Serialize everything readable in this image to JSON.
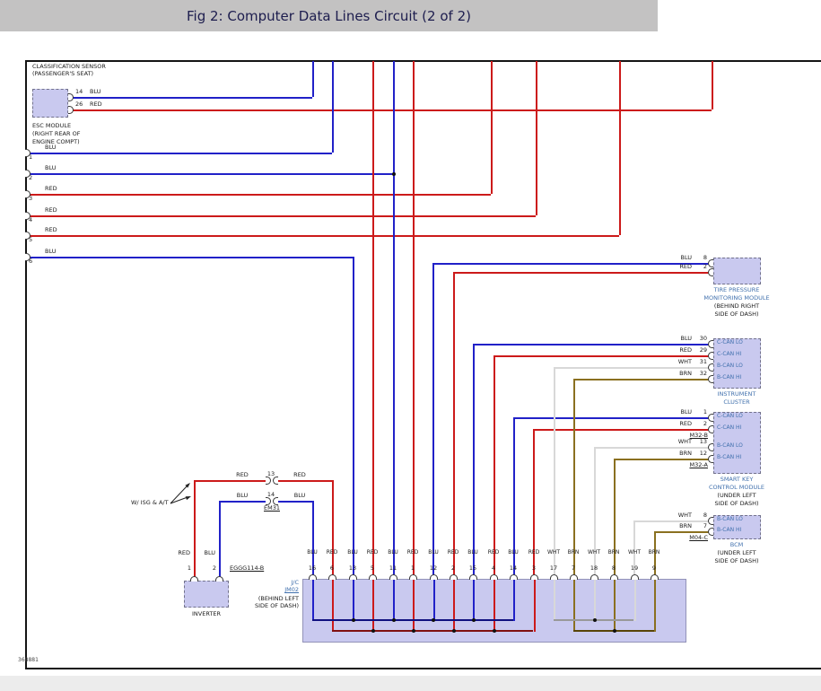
{
  "header": {
    "title": "Fig 2: Computer Data Lines Circuit (2 of 2)"
  },
  "figure_number": "368881",
  "palette": {
    "blu": "#2121c8",
    "red": "#cc1a1a",
    "wht": "#d8d8d8",
    "brn": "#8a7020",
    "bus_blu": "#101080",
    "bus_red": "#801010",
    "bus_wht": "#999999",
    "bus_brn": "#584408",
    "module_name_color": "#4070ad",
    "box_fill": "#c9c9ef"
  },
  "modules": {
    "classification_sensor": {
      "name_lines": [
        "CLASSIFICATION SENSOR",
        "(PASSENGER'S SEAT)"
      ],
      "pins": [
        {
          "num": "14",
          "wire": "BLU"
        },
        {
          "num": "26",
          "wire": "RED"
        }
      ]
    },
    "esc_module": {
      "name_lines": [
        "ESC MODULE",
        "(RIGHT REAR OF",
        "ENGINE COMPT)"
      ],
      "pins": [
        {
          "num": "1",
          "wire": "BLU"
        },
        {
          "num": "2",
          "wire": "BLU"
        },
        {
          "num": "3",
          "wire": "RED"
        },
        {
          "num": "4",
          "wire": "RED"
        },
        {
          "num": "5",
          "wire": "RED"
        },
        {
          "num": "6",
          "wire": "BLU"
        }
      ]
    },
    "tpms": {
      "name_lines": [
        "TIRE PRESSURE",
        "MONITORING MODULE"
      ],
      "location_lines": [
        "(BEHIND RIGHT",
        "SIDE OF DASH)"
      ],
      "pins": [
        {
          "num": "8",
          "wire": "BLU"
        },
        {
          "num": "2",
          "wire": "RED"
        }
      ]
    },
    "instrument_cluster": {
      "name_lines": [
        "INSTRUMENT",
        "CLUSTER"
      ],
      "location_lines": [],
      "pins": [
        {
          "num": "30",
          "wire": "BLU",
          "can": "C-CAN LO"
        },
        {
          "num": "29",
          "wire": "RED",
          "can": "C-CAN HI"
        },
        {
          "num": "31",
          "wire": "WHT",
          "can": "B-CAN LO"
        },
        {
          "num": "32",
          "wire": "BRN",
          "can": "B-CAN HI"
        }
      ]
    },
    "smart_key": {
      "name_lines": [
        "SMART KEY",
        "CONTROL MODULE"
      ],
      "location_lines": [
        "(UNDER LEFT",
        "SIDE OF DASH)"
      ],
      "pins": [
        {
          "num": "1",
          "wire": "BLU",
          "can": "C-CAN LO"
        },
        {
          "num": "2",
          "wire": "RED",
          "can": "C-CAN HI",
          "connector": "M32-B"
        },
        {
          "num": "13",
          "wire": "WHT",
          "can": "B-CAN LO"
        },
        {
          "num": "12",
          "wire": "BRN",
          "can": "B-CAN HI",
          "connector": "M32-A"
        }
      ]
    },
    "bcm": {
      "name_lines": [
        "BCM"
      ],
      "location_lines": [
        "(UNDER LEFT",
        "SIDE OF DASH)"
      ],
      "pins": [
        {
          "num": "8",
          "wire": "WHT",
          "can": "B-CAN LO"
        },
        {
          "num": "7",
          "wire": "BRN",
          "can": "B-CAN HI",
          "connector": "M04-C"
        }
      ]
    },
    "em31": {
      "label": "EM31",
      "note": "W/ ISG & A/T",
      "pins": [
        {
          "num": "13",
          "left": "RED",
          "right": "RED"
        },
        {
          "num": "14",
          "left": "BLU",
          "right": "BLU"
        }
      ]
    },
    "inverter": {
      "name": "INVERTER",
      "connector": "EGGG114-B",
      "pins": [
        {
          "num": "1",
          "wire": "RED"
        },
        {
          "num": "2",
          "wire": "BLU"
        }
      ]
    },
    "jm02": {
      "name_lines": [
        "J/C",
        "JM02"
      ],
      "location_lines": [
        "(BEHIND LEFT",
        "SIDE OF DASH)"
      ],
      "pins": [
        {
          "num": "16",
          "wire": "BLU"
        },
        {
          "num": "6",
          "wire": "RED"
        },
        {
          "num": "13",
          "wire": "BLU"
        },
        {
          "num": "5",
          "wire": "RED"
        },
        {
          "num": "11",
          "wire": "BLU"
        },
        {
          "num": "1",
          "wire": "RED"
        },
        {
          "num": "12",
          "wire": "BLU"
        },
        {
          "num": "2",
          "wire": "RED"
        },
        {
          "num": "15",
          "wire": "BLU"
        },
        {
          "num": "4",
          "wire": "RED"
        },
        {
          "num": "14",
          "wire": "BLU"
        },
        {
          "num": "3",
          "wire": "RED"
        },
        {
          "num": "17",
          "wire": "WHT"
        },
        {
          "num": "7",
          "wire": "BRN"
        },
        {
          "num": "18",
          "wire": "WHT"
        },
        {
          "num": "8",
          "wire": "BRN"
        },
        {
          "num": "19",
          "wire": "WHT"
        },
        {
          "num": "9",
          "wire": "BRN"
        }
      ]
    }
  }
}
